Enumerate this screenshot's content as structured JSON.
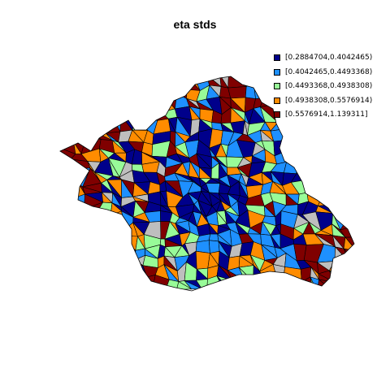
{
  "title": "eta stds",
  "colors": {
    "class1": "#00008b",
    "class2": "#1e90ff",
    "class3": "#98fb98",
    "class4": "#ff8c00",
    "class5": "#800000",
    "missing": "#bebebe",
    "border": "#000000"
  },
  "legend": [
    {
      "label": "[0.2884704,0.4042465)",
      "color": "#00008b"
    },
    {
      "label": "[0.4042465,0.4493368)",
      "color": "#1e90ff"
    },
    {
      "label": "[0.4493368,0.4938308)",
      "color": "#98fb98"
    },
    {
      "label": "[0.4938308,0.5576914)",
      "color": "#ff8c00"
    },
    {
      "label": "[0.5576914,1.139311]",
      "color": "#800000"
    }
  ]
}
